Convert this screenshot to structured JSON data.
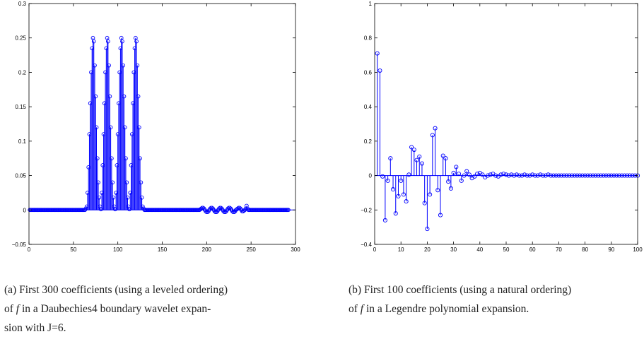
{
  "colors": {
    "stem": "#0000ff",
    "axis": "#000000",
    "background": "#ffffff"
  },
  "chart_data": [
    {
      "id": "a",
      "type": "stem",
      "title": "",
      "xlabel": "",
      "ylabel": "",
      "xlim": [
        0,
        300
      ],
      "ylim": [
        -0.05,
        0.3
      ],
      "xticks": [
        "0",
        "50",
        "100",
        "150",
        "200",
        "250",
        "300"
      ],
      "yticks": [
        "−0.05",
        "0",
        "0.05",
        "0.1",
        "0.15",
        "0.2",
        "0.25",
        "0.3"
      ],
      "grid": false,
      "x_start": 1,
      "values": [
        0,
        0,
        0,
        0,
        0,
        0,
        0,
        0,
        0,
        0,
        0,
        0,
        0,
        0,
        0,
        0,
        0,
        0,
        0,
        0,
        0,
        0,
        0,
        0,
        0,
        0,
        0,
        0,
        0,
        0,
        0,
        0,
        0,
        0,
        0,
        0,
        0,
        0,
        0,
        0,
        0,
        0,
        0,
        0,
        0,
        0,
        0,
        0,
        0,
        0,
        0,
        0,
        0,
        0,
        0,
        0,
        0,
        0,
        0,
        0,
        0,
        0,
        0,
        0.002,
        0.005,
        0.025,
        0.062,
        0.11,
        0.155,
        0.2,
        0.235,
        0.25,
        0.245,
        0.21,
        0.165,
        0.12,
        0.075,
        0.04,
        0.018,
        0.005,
        0.001,
        0.025,
        0.065,
        0.11,
        0.155,
        0.2,
        0.235,
        0.25,
        0.245,
        0.21,
        0.165,
        0.12,
        0.075,
        0.04,
        0.018,
        0.005,
        0.001,
        0.025,
        0.065,
        0.11,
        0.155,
        0.2,
        0.235,
        0.25,
        0.245,
        0.21,
        0.165,
        0.12,
        0.075,
        0.04,
        0.018,
        0.005,
        0.001,
        0.025,
        0.065,
        0.11,
        0.155,
        0.2,
        0.235,
        0.25,
        0.245,
        0.21,
        0.165,
        0.12,
        0.075,
        0.04,
        0.018,
        0.005,
        0.002,
        0,
        0,
        0,
        0,
        0,
        0,
        0,
        0,
        0,
        0,
        0,
        0,
        0,
        0,
        0,
        0,
        0,
        0,
        0,
        0,
        0,
        0,
        0,
        0,
        0,
        0,
        0,
        0,
        0,
        0,
        0,
        0,
        0,
        0,
        0,
        0,
        0,
        0,
        0,
        0,
        0,
        0,
        0,
        0,
        0,
        0,
        0,
        0,
        0,
        0,
        0,
        0,
        0,
        0,
        0,
        0,
        0,
        0,
        0,
        0,
        0,
        0,
        0,
        0.001,
        0.002,
        0.003,
        0.003,
        0.002,
        0,
        -0.002,
        -0.003,
        -0.003,
        -0.002,
        0,
        0.002,
        0.003,
        0.003,
        0.002,
        0,
        -0.002,
        -0.003,
        -0.003,
        -0.002,
        0,
        0.002,
        0.003,
        0.003,
        0.002,
        0,
        -0.002,
        -0.003,
        -0.003,
        -0.002,
        0,
        0.002,
        0.003,
        0.003,
        0.002,
        0,
        -0.002,
        -0.003,
        -0.003,
        -0.002,
        0,
        0.001,
        0.002,
        0.003,
        0.003,
        0.002,
        0,
        -0.002,
        -0.002,
        -0.001,
        0,
        0.002,
        0.006,
        0.002,
        0,
        0,
        0,
        0,
        0,
        0,
        0,
        0,
        0,
        0,
        0,
        0,
        0,
        0,
        0,
        0,
        0,
        0,
        0,
        0,
        0,
        0,
        0,
        0,
        0,
        0,
        0,
        0,
        0,
        0,
        0,
        0,
        0,
        0,
        0,
        0,
        0,
        0,
        0,
        0,
        0,
        0,
        0,
        0,
        0,
        0
      ],
      "caption_prefix": "(a) First 300 coefficients (using a leveled ordering)",
      "caption_line2_pre": "of",
      "caption_var": "f",
      "caption_line2_post": "in a Daubechies4 boundary wavelet expan-",
      "caption_line3": "sion with J=6."
    },
    {
      "id": "b",
      "type": "stem",
      "title": "",
      "xlabel": "",
      "ylabel": "",
      "xlim": [
        0,
        100
      ],
      "ylim": [
        -0.4,
        1
      ],
      "xticks": [
        "0",
        "10",
        "20",
        "30",
        "40",
        "50",
        "60",
        "70",
        "80",
        "90",
        "100"
      ],
      "yticks": [
        "−0.4",
        "−0.2",
        "0",
        "0.2",
        "0.4",
        "0.6",
        "0.8",
        "1"
      ],
      "grid": false,
      "x_start": 1,
      "values": [
        0.71,
        0.61,
        -0.005,
        -0.26,
        -0.03,
        0.1,
        -0.08,
        -0.22,
        -0.12,
        -0.03,
        -0.11,
        -0.15,
        0.005,
        0.165,
        0.15,
        0.09,
        0.11,
        0.07,
        -0.16,
        -0.31,
        -0.11,
        0.235,
        0.275,
        -0.085,
        -0.23,
        0.115,
        0.1,
        -0.035,
        -0.075,
        0.015,
        0.05,
        0.01,
        -0.03,
        0,
        0.025,
        0.005,
        -0.015,
        -0.005,
        0.01,
        0.015,
        0.005,
        -0.01,
        0,
        0.005,
        0.01,
        0,
        -0.005,
        0.005,
        0.01,
        0.005,
        0,
        0.005,
        0,
        0.005,
        0,
        0,
        0.005,
        0,
        0,
        0.005,
        0,
        0,
        0.005,
        0,
        0,
        0.005,
        0,
        0,
        0,
        0,
        0,
        0,
        0,
        0,
        0,
        0,
        0,
        0,
        0,
        0,
        0,
        0,
        0,
        0,
        0,
        0,
        0,
        0,
        0,
        0,
        0,
        0,
        0,
        0,
        0,
        0,
        0,
        0,
        0,
        0
      ],
      "caption_prefix": "(b) First 100 coefficients (using a natural ordering)",
      "caption_line2_pre": "of",
      "caption_var": "f",
      "caption_line2_post": "in a Legendre polynomial expansion."
    }
  ]
}
